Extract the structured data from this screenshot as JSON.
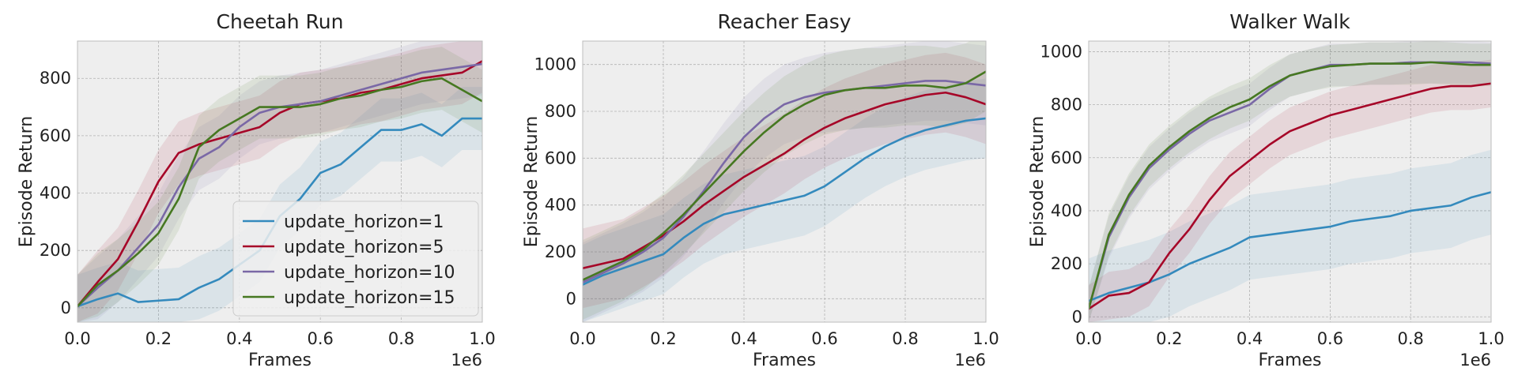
{
  "colors": {
    "update_horizon=1": "#348ABD",
    "update_horizon=5": "#A60628",
    "update_horizon=10": "#7A68A6",
    "update_horizon=15": "#467821",
    "axes_bg": "#EEEEEE",
    "grid": "#B2B2B2"
  },
  "chart_data": [
    {
      "type": "line",
      "title": "Cheetah Run",
      "xlabel": "Frames",
      "ylabel": "Episode Return",
      "x_offset_label": "1e6",
      "xlim": [
        0,
        1.0
      ],
      "ylim": [
        -50,
        930
      ],
      "xticks": [
        0.0,
        0.2,
        0.4,
        0.6,
        0.8,
        1.0
      ],
      "xtick_labels": [
        "0.0",
        "0.2",
        "0.4",
        "0.6",
        "0.8",
        "1.0"
      ],
      "yticks": [
        0,
        200,
        400,
        600,
        800
      ],
      "ytick_labels": [
        "0",
        "200",
        "400",
        "600",
        "800"
      ],
      "grid": true,
      "legend": {
        "placement": "lower-right",
        "entries": [
          "update_horizon=1",
          "update_horizon=5",
          "update_horizon=10",
          "update_horizon=15"
        ]
      },
      "x": [
        0.0,
        0.05,
        0.1,
        0.15,
        0.2,
        0.25,
        0.3,
        0.35,
        0.4,
        0.45,
        0.5,
        0.55,
        0.6,
        0.65,
        0.7,
        0.75,
        0.8,
        0.85,
        0.9,
        0.95,
        1.0
      ],
      "series": [
        {
          "name": "update_horizon=1",
          "values": [
            5,
            30,
            50,
            20,
            25,
            30,
            70,
            100,
            150,
            200,
            320,
            380,
            470,
            500,
            560,
            620,
            620,
            640,
            600,
            660,
            660
          ],
          "band": 110
        },
        {
          "name": "update_horizon=5",
          "values": [
            5,
            90,
            170,
            300,
            440,
            540,
            570,
            590,
            610,
            630,
            680,
            710,
            720,
            730,
            750,
            760,
            780,
            800,
            810,
            820,
            860
          ],
          "band": 110
        },
        {
          "name": "update_horizon=10",
          "values": [
            5,
            70,
            130,
            210,
            290,
            420,
            520,
            560,
            630,
            680,
            700,
            710,
            720,
            740,
            760,
            780,
            800,
            820,
            830,
            840,
            850
          ],
          "band": 110
        },
        {
          "name": "update_horizon=15",
          "values": [
            5,
            80,
            130,
            190,
            260,
            380,
            560,
            620,
            660,
            700,
            700,
            700,
            710,
            730,
            740,
            760,
            770,
            790,
            800,
            760,
            720
          ],
          "band": 110
        }
      ]
    },
    {
      "type": "line",
      "title": "Reacher Easy",
      "xlabel": "Frames",
      "ylabel": "Episode Return",
      "x_offset_label": "1e6",
      "xlim": [
        0,
        1.0
      ],
      "ylim": [
        -100,
        1100
      ],
      "xticks": [
        0.0,
        0.2,
        0.4,
        0.6,
        0.8,
        1.0
      ],
      "xtick_labels": [
        "0.0",
        "0.2",
        "0.4",
        "0.6",
        "0.8",
        "1.0"
      ],
      "yticks": [
        0,
        200,
        400,
        600,
        800,
        1000
      ],
      "ytick_labels": [
        "0",
        "200",
        "400",
        "600",
        "800",
        "1000"
      ],
      "grid": true,
      "x": [
        0.0,
        0.05,
        0.1,
        0.15,
        0.2,
        0.25,
        0.3,
        0.35,
        0.4,
        0.45,
        0.5,
        0.55,
        0.6,
        0.65,
        0.7,
        0.75,
        0.8,
        0.85,
        0.9,
        0.95,
        1.0
      ],
      "series": [
        {
          "name": "update_horizon=1",
          "values": [
            60,
            100,
            130,
            160,
            190,
            260,
            320,
            360,
            380,
            400,
            420,
            440,
            480,
            540,
            600,
            650,
            690,
            720,
            740,
            760,
            770
          ],
          "band": 170
        },
        {
          "name": "update_horizon=5",
          "values": [
            130,
            150,
            170,
            220,
            270,
            330,
            400,
            460,
            520,
            570,
            620,
            680,
            730,
            770,
            800,
            830,
            850,
            870,
            880,
            860,
            830
          ],
          "band": 170
        },
        {
          "name": "update_horizon=10",
          "values": [
            70,
            110,
            150,
            200,
            260,
            350,
            460,
            580,
            690,
            770,
            830,
            860,
            880,
            890,
            900,
            910,
            920,
            930,
            930,
            920,
            910
          ],
          "band": 170
        },
        {
          "name": "update_horizon=15",
          "values": [
            80,
            120,
            160,
            210,
            280,
            360,
            450,
            540,
            630,
            710,
            780,
            830,
            870,
            890,
            900,
            900,
            910,
            910,
            900,
            920,
            970
          ],
          "band": 170
        }
      ]
    },
    {
      "type": "line",
      "title": "Walker Walk",
      "xlabel": "Frames",
      "ylabel": "Episode Return",
      "x_offset_label": "1e6",
      "xlim": [
        0,
        1.0
      ],
      "ylim": [
        -20,
        1040
      ],
      "xticks": [
        0.0,
        0.2,
        0.4,
        0.6,
        0.8,
        1.0
      ],
      "xtick_labels": [
        "0.0",
        "0.2",
        "0.4",
        "0.6",
        "0.8",
        "1.0"
      ],
      "yticks": [
        0,
        200,
        400,
        600,
        800,
        1000
      ],
      "ytick_labels": [
        "0",
        "200",
        "400",
        "600",
        "800",
        "1000"
      ],
      "grid": true,
      "x": [
        0.0,
        0.05,
        0.1,
        0.15,
        0.2,
        0.25,
        0.3,
        0.35,
        0.4,
        0.45,
        0.5,
        0.55,
        0.6,
        0.65,
        0.7,
        0.75,
        0.8,
        0.85,
        0.9,
        0.95,
        1.0
      ],
      "series": [
        {
          "name": "update_horizon=1",
          "values": [
            60,
            90,
            110,
            130,
            160,
            200,
            230,
            260,
            300,
            310,
            320,
            330,
            340,
            360,
            370,
            380,
            400,
            410,
            420,
            450,
            470
          ],
          "band": 160
        },
        {
          "name": "update_horizon=5",
          "values": [
            30,
            80,
            90,
            130,
            240,
            330,
            440,
            530,
            590,
            650,
            700,
            730,
            760,
            780,
            800,
            820,
            840,
            860,
            870,
            870,
            880
          ],
          "band": 90
        },
        {
          "name": "update_horizon=10",
          "values": [
            30,
            300,
            450,
            560,
            630,
            690,
            740,
            770,
            800,
            860,
            910,
            930,
            950,
            950,
            955,
            955,
            960,
            960,
            960,
            960,
            955
          ],
          "band": 80
        },
        {
          "name": "update_horizon=15",
          "values": [
            30,
            310,
            460,
            570,
            640,
            700,
            750,
            790,
            820,
            870,
            910,
            930,
            945,
            950,
            955,
            955,
            955,
            960,
            955,
            950,
            950
          ],
          "band": 80
        }
      ]
    }
  ]
}
